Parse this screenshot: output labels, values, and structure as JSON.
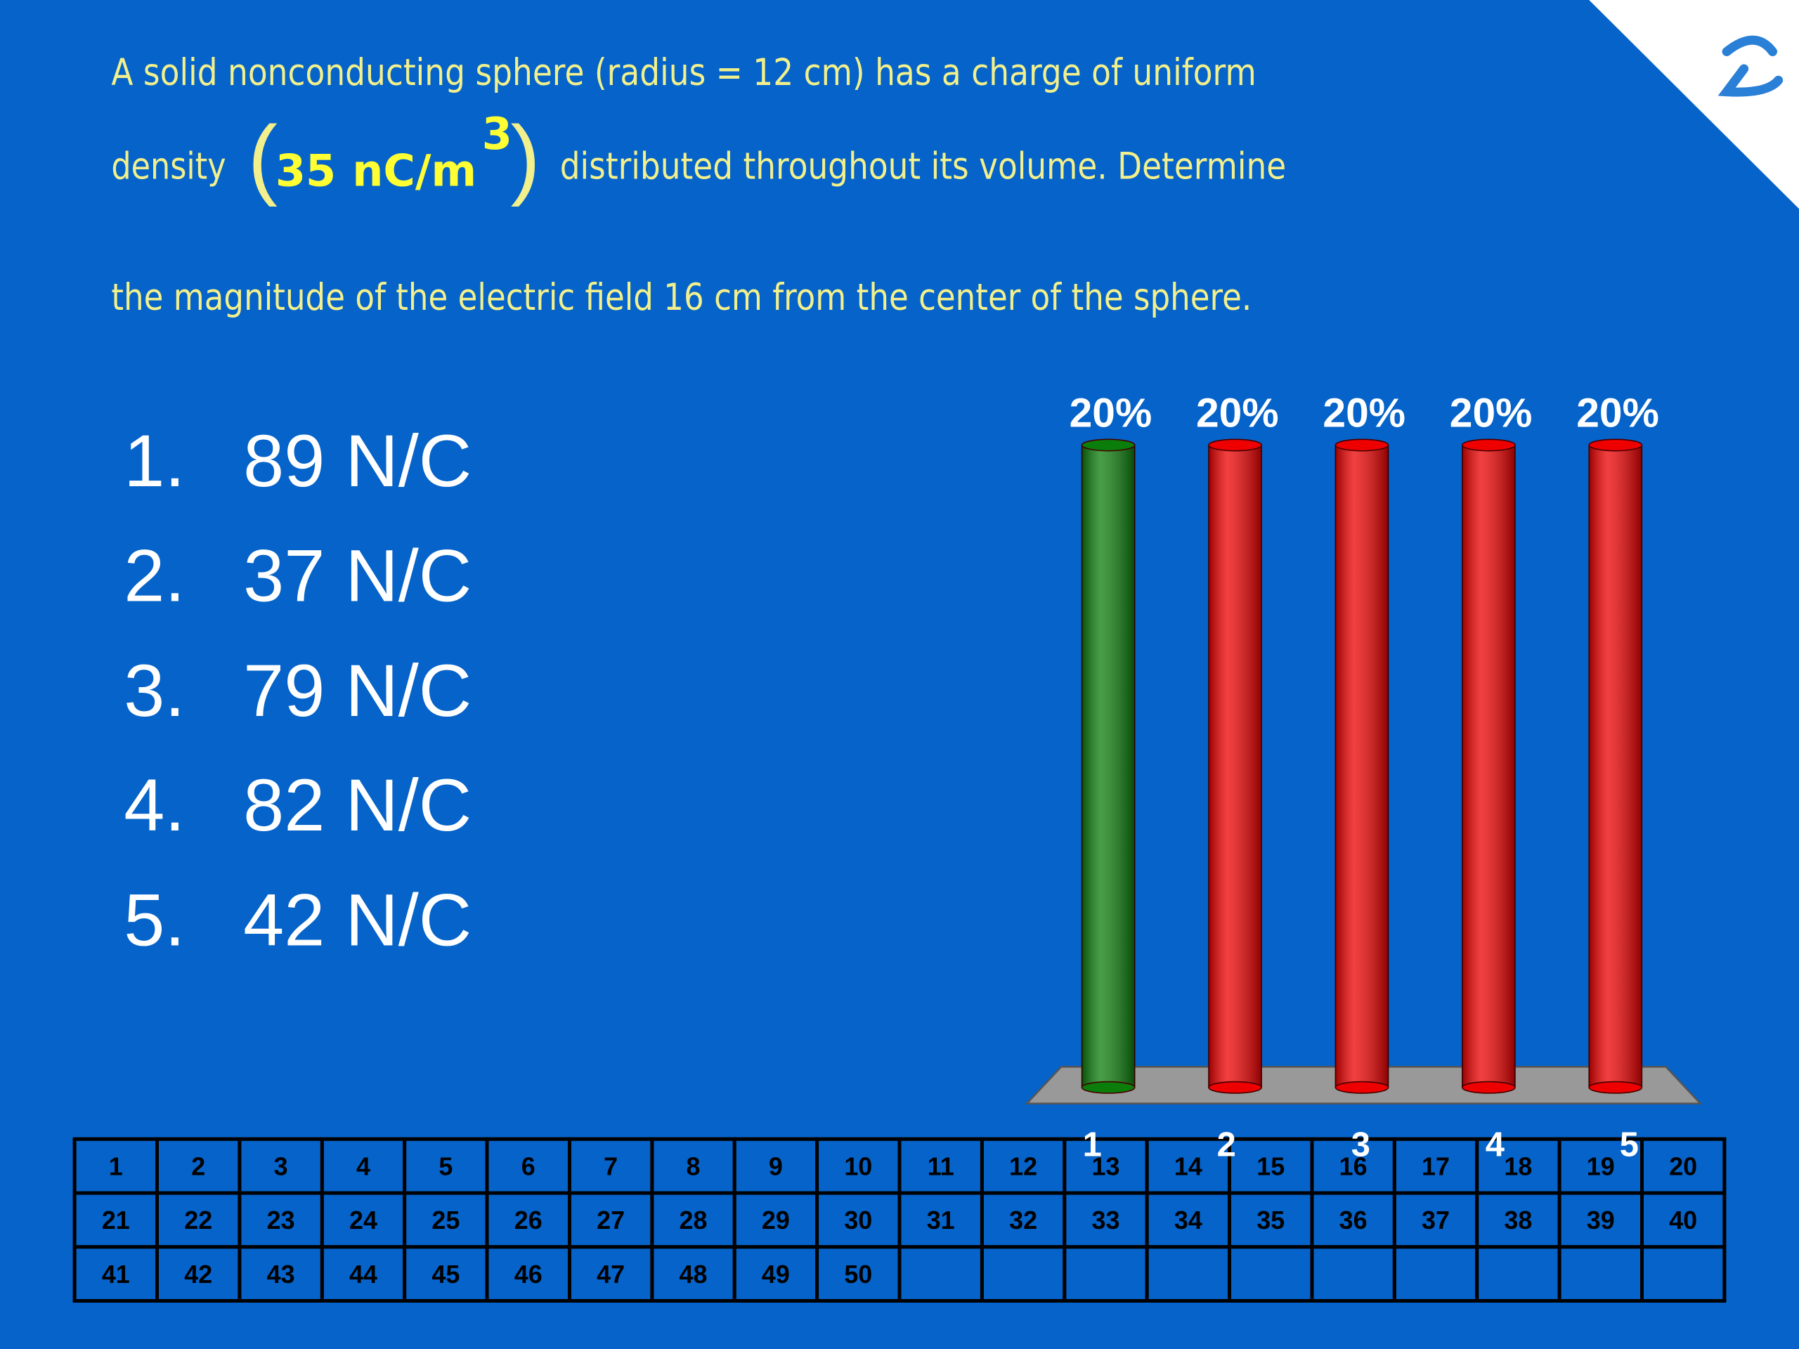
{
  "question": {
    "line1": "A solid nonconducting sphere (radius = 12 cm) has a charge of uniform",
    "line2_start": "density",
    "formula": {
      "value": "35",
      "unit": "nC/m",
      "exponent": "3"
    },
    "line2_end": "distributed throughout its volume. Determine",
    "line3": "the magnitude of the electric field 16 cm from the center of the sphere."
  },
  "answers": [
    {
      "number": "1.",
      "text": "89 N/C"
    },
    {
      "number": "2.",
      "text": "37 N/C"
    },
    {
      "number": "3.",
      "text": "79 N/C"
    },
    {
      "number": "4.",
      "text": "82 N/C"
    },
    {
      "number": "5.",
      "text": "42 N/C"
    }
  ],
  "chart_data": {
    "type": "bar",
    "categories": [
      "1",
      "2",
      "3",
      "4",
      "5"
    ],
    "values": [
      20,
      20,
      20,
      20,
      20
    ],
    "value_labels": [
      "20%",
      "20%",
      "20%",
      "20%",
      "20%"
    ],
    "colors": [
      "#0b7d0b",
      "#ee0000",
      "#ee0000",
      "#ee0000",
      "#ee0000"
    ]
  },
  "response_grid": {
    "rows": [
      [
        "1",
        "2",
        "3",
        "4",
        "5",
        "6",
        "7",
        "8",
        "9",
        "10",
        "11",
        "12",
        "13",
        "14",
        "15",
        "16",
        "17",
        "18",
        "19",
        "20"
      ],
      [
        "21",
        "22",
        "23",
        "24",
        "25",
        "26",
        "27",
        "28",
        "29",
        "30",
        "31",
        "32",
        "33",
        "34",
        "35",
        "36",
        "37",
        "38",
        "39",
        "40"
      ],
      [
        "41",
        "42",
        "43",
        "44",
        "45",
        "46",
        "47",
        "48",
        "49",
        "50"
      ]
    ]
  }
}
